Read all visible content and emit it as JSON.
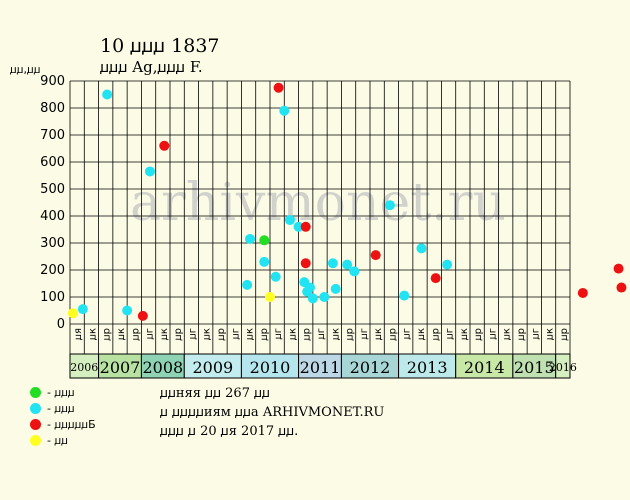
{
  "header": {
    "title": "10 ꙡꙡꙡ 1837",
    "subtitle": "ꙡꙡꙡ Ag,ꙡꙡꙡ F.",
    "ylabel": "ꙡꙡ,ꙡꙡ"
  },
  "legend": [
    {
      "color": "#22dd22",
      "label": "- ꙡꙡꙡ"
    },
    {
      "color": "#22e3f2",
      "label": "- ꙡꙡꙡ"
    },
    {
      "color": "#ee1111",
      "label": "- ꙡꙡꙡꙡꙡБ"
    },
    {
      "color": "#ffff22",
      "label": "- ꙡꙡ"
    }
  ],
  "notes": {
    "line1": "ꙡꙡняя ꙡꙡ 267 ꙡꙡ",
    "line2": "ꙡ ꙡꙡꙡꙡиям ꙡꙡа ARHIVMONET.RU",
    "line3": "ꙡꙡꙡ ꙡ 20 ꙡя 2017 ꙡꙡ."
  },
  "watermark": "arhivmonet.ru",
  "colors": {
    "background": "#fcfce6",
    "year_bands": [
      "#d6efc0",
      "#b8e2a2",
      "#8ed3b4",
      "#c3ecee",
      "#b6e6ed",
      "#bcd7e6",
      "#a8d6d6",
      "#bee9ea",
      "#c8e8a8",
      "#bfe0b0"
    ]
  },
  "chart_data": {
    "type": "scatter",
    "title": "10 ꙡꙡꙡ 1837",
    "ylabel": "ꙡꙡ,ꙡꙡ",
    "ylim": [
      0,
      900
    ],
    "yticks": [
      0,
      100,
      200,
      300,
      400,
      500,
      600,
      700,
      800,
      900
    ],
    "grid": true,
    "months": [
      "ꙡя",
      "ꙡк",
      "ꙡр",
      "ꙡк",
      "ꙡр",
      "ꙡг",
      "ꙡк",
      "ꙡр",
      "ꙡг",
      "ꙡк",
      "ꙡр",
      "ꙡг",
      "ꙡк",
      "ꙡр",
      "ꙡг",
      "ꙡк",
      "ꙡр",
      "ꙡг",
      "ꙡк",
      "ꙡр",
      "ꙡг",
      "ꙡк",
      "ꙡр",
      "ꙡг",
      "ꙡк",
      "ꙡр",
      "ꙡг",
      "ꙡк",
      "ꙡр",
      "ꙡг",
      "ꙡк",
      "ꙡр",
      "ꙡг",
      "ꙡк",
      "ꙡр"
    ],
    "years": [
      {
        "label": "2006",
        "span": 2,
        "small": true
      },
      {
        "label": "2007",
        "span": 3
      },
      {
        "label": "2008",
        "span": 3
      },
      {
        "label": "2009",
        "span": 4
      },
      {
        "label": "2010",
        "span": 4
      },
      {
        "label": "2011",
        "span": 3
      },
      {
        "label": "2012",
        "span": 4
      },
      {
        "label": "2013",
        "span": 4
      },
      {
        "label": "2014",
        "span": 4
      },
      {
        "label": "2015",
        "span": 3
      },
      {
        "label": "2016",
        "span": 1,
        "small": true
      }
    ],
    "series": [
      {
        "name": "- ꙡꙡꙡ",
        "color": "#22dd22",
        "points": [
          [
            13.6,
            310
          ]
        ]
      },
      {
        "name": "- ꙡꙡꙡ",
        "color": "#22e3f2",
        "points": [
          [
            0.9,
            55
          ],
          [
            2.6,
            850
          ],
          [
            4.0,
            50
          ],
          [
            5.6,
            565
          ],
          [
            12.4,
            145
          ],
          [
            12.6,
            315
          ],
          [
            13.6,
            230
          ],
          [
            14.4,
            175
          ],
          [
            15.0,
            790
          ],
          [
            15.4,
            385
          ],
          [
            16.0,
            360
          ],
          [
            16.4,
            155
          ],
          [
            16.6,
            120
          ],
          [
            16.8,
            135
          ],
          [
            17.0,
            95
          ],
          [
            17.8,
            100
          ],
          [
            18.4,
            225
          ],
          [
            18.6,
            130
          ],
          [
            19.4,
            220
          ],
          [
            19.9,
            195
          ],
          [
            22.4,
            440
          ],
          [
            23.4,
            105
          ],
          [
            24.6,
            280
          ],
          [
            26.4,
            220
          ]
        ]
      },
      {
        "name": "- ꙡꙡꙡꙡꙡБ",
        "color": "#ee1111",
        "points": [
          [
            5.1,
            30
          ],
          [
            6.6,
            660
          ],
          [
            14.6,
            875
          ],
          [
            16.5,
            360
          ],
          [
            16.5,
            225
          ],
          [
            21.4,
            255
          ],
          [
            25.6,
            170
          ],
          [
            35.9,
            115
          ],
          [
            38.4,
            205
          ],
          [
            38.6,
            135
          ]
        ]
      },
      {
        "name": "- ꙡꙡ",
        "color": "#ffff22",
        "points": [
          [
            0.2,
            40
          ],
          [
            14.0,
            100
          ]
        ]
      }
    ]
  }
}
